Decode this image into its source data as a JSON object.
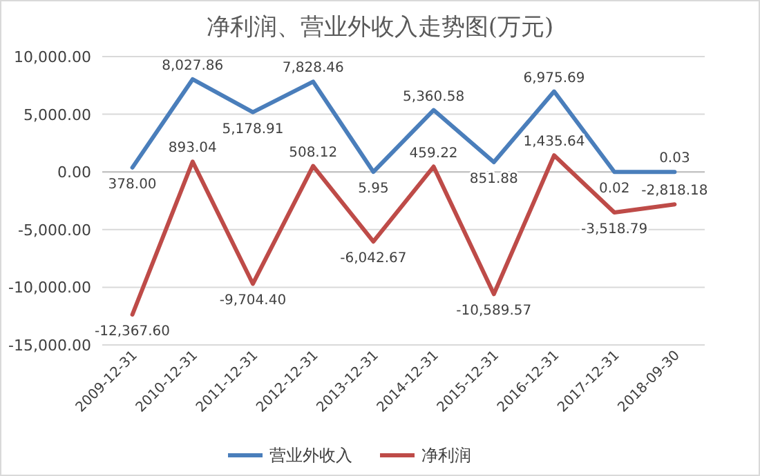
{
  "chart_data": {
    "type": "line",
    "title": "净利润、营业外收入走势图(万元)",
    "categories": [
      "2009-12-31",
      "2010-12-31",
      "2011-12-31",
      "2012-12-31",
      "2013-12-31",
      "2014-12-31",
      "2015-12-31",
      "2016-12-31",
      "2017-12-31",
      "2018-09-30"
    ],
    "series": [
      {
        "name": "营业外收入",
        "color": "#4a7ebb",
        "values": [
          378.0,
          8027.86,
          5178.91,
          7828.46,
          5.95,
          5360.58,
          851.88,
          6975.69,
          0.02,
          0.03
        ],
        "value_labels": [
          "378.00",
          "8,027.86",
          "5,178.91",
          "7,828.46",
          "5.95",
          "5,360.58",
          "851.88",
          "6,975.69",
          "0.02",
          "0.03"
        ]
      },
      {
        "name": "净利润",
        "color": "#be4b48",
        "values": [
          -12367.6,
          893.04,
          -9704.4,
          508.12,
          -6042.67,
          459.22,
          -10589.57,
          1435.64,
          -3518.79,
          -2818.18
        ],
        "value_labels": [
          "-12,367.60",
          "893.04",
          "-9,704.40",
          "508.12",
          "-6,042.67",
          "459.22",
          "-10,589.57",
          "1,435.64",
          "-3,518.79",
          "-2,818.18"
        ]
      }
    ],
    "ylim": [
      -15000,
      10000
    ],
    "yticks": [
      {
        "value": -15000,
        "label": "-15,000.00"
      },
      {
        "value": -10000,
        "label": "-10,000.00"
      },
      {
        "value": -5000,
        "label": "-5,000.00"
      },
      {
        "value": 0,
        "label": "0.00"
      },
      {
        "value": 5000,
        "label": "5,000.00"
      },
      {
        "value": 10000,
        "label": "10,000.00"
      }
    ],
    "grid": "y",
    "legend": "bottom",
    "marker": "none",
    "line_style": "solid"
  }
}
